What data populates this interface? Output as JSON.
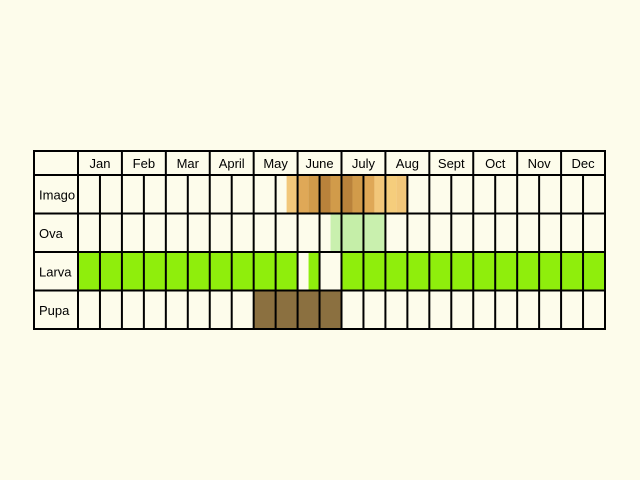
{
  "chart_data": {
    "type": "table",
    "months": [
      "Jan",
      "Feb",
      "Mar",
      "April",
      "May",
      "June",
      "July",
      "Aug",
      "Sept",
      "Oct",
      "Nov",
      "Dec"
    ],
    "stages": [
      {
        "name": "Imago",
        "cells": [
          {
            "from": 9.5,
            "to": 10,
            "color": "#f2c77a"
          },
          {
            "from": 10,
            "to": 10.5,
            "color": "#dfa857"
          },
          {
            "from": 10.5,
            "to": 11,
            "color": "#d19b4a"
          },
          {
            "from": 11,
            "to": 11.5,
            "color": "#b9823b"
          },
          {
            "from": 11.5,
            "to": 12,
            "color": "#d19b4a"
          },
          {
            "from": 12,
            "to": 12.5,
            "color": "#b9823b"
          },
          {
            "from": 12.5,
            "to": 13,
            "color": "#d19b4a"
          },
          {
            "from": 13,
            "to": 13.5,
            "color": "#dfa857"
          },
          {
            "from": 13.5,
            "to": 14,
            "color": "#f2c77a"
          },
          {
            "from": 14,
            "to": 14.5,
            "color": "#f5cd7c"
          },
          {
            "from": 14.5,
            "to": 15,
            "color": "#f2c77a"
          }
        ]
      },
      {
        "name": "Ova",
        "cells": [
          {
            "from": 11.5,
            "to": 12,
            "color": "#c9f0ae"
          },
          {
            "from": 12,
            "to": 13,
            "color": "#c5eea8"
          },
          {
            "from": 13,
            "to": 14,
            "color": "#c9f0ae"
          }
        ]
      },
      {
        "name": "Larva",
        "cells": [
          {
            "from": 0,
            "to": 10,
            "color": "#8fee0c"
          },
          {
            "from": 10.5,
            "to": 11,
            "color": "#8fee0c"
          },
          {
            "from": 12,
            "to": 24,
            "color": "#8fee0c"
          }
        ]
      },
      {
        "name": "Pupa",
        "cells": [
          {
            "from": 8,
            "to": 12,
            "color": "#8b7040"
          }
        ]
      }
    ]
  }
}
